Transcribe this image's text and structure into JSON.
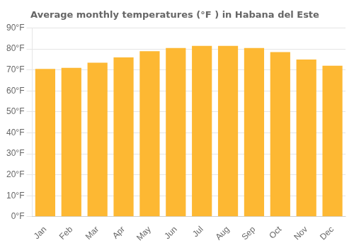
{
  "chart_data": {
    "type": "bar",
    "title": "Average monthly temperatures (°F ) in Habana del Este",
    "categories": [
      "Jan",
      "Feb",
      "Mar",
      "Apr",
      "May",
      "Jun",
      "Jul",
      "Aug",
      "Sep",
      "Oct",
      "Nov",
      "Dec"
    ],
    "values": [
      70.5,
      71.0,
      73.5,
      76.0,
      79.0,
      80.5,
      81.5,
      81.5,
      80.5,
      78.5,
      75.0,
      72.0
    ],
    "color": "#FDB833",
    "ylim": [
      0,
      90
    ],
    "yticks": [
      {
        "value": 0,
        "label": "0°F"
      },
      {
        "value": 10,
        "label": "10°F"
      },
      {
        "value": 20,
        "label": "20°F"
      },
      {
        "value": 30,
        "label": "30°F"
      },
      {
        "value": 40,
        "label": "40°F"
      },
      {
        "value": 50,
        "label": "50°F"
      },
      {
        "value": 60,
        "label": "60°F"
      },
      {
        "value": 70,
        "label": "70°F"
      },
      {
        "value": 80,
        "label": "80°F"
      },
      {
        "value": 90,
        "label": "90°F"
      }
    ],
    "grid": true
  }
}
